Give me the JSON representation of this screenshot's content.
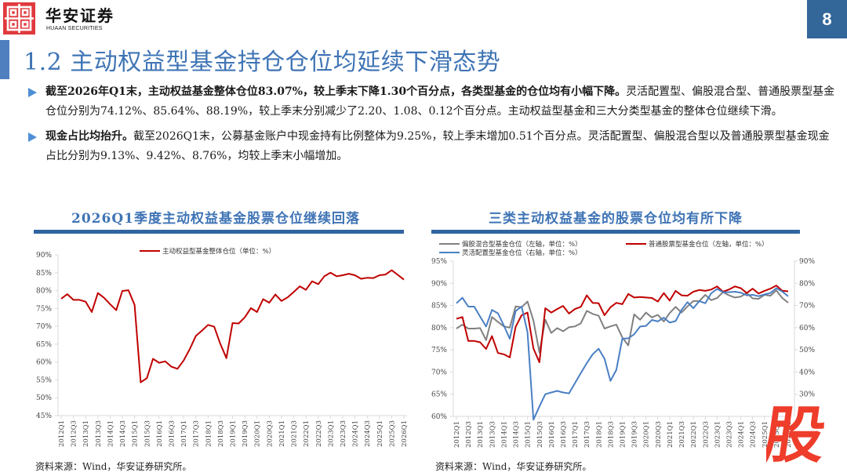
{
  "header": {
    "brand_cn": "华安证券",
    "brand_en": "HUAAN SECURITIES",
    "page_number": "8",
    "logo_color": "#e03a3e",
    "page_badge_color": "#336699"
  },
  "title": "1.2 主动权益型基金持仓仓位均延续下滑态势",
  "bullets": [
    {
      "bold": "截至2026年Q1末，主动权益基金整体仓位83.07%，较上季末下降1.30个百分点，各类型基金的仓位均有小幅下降。",
      "text": "灵活配置型、偏股混合型、普通股票型基金仓位分别为74.12%、85.64%、88.19%，较上季末分别减少了2.20、1.08、0.12个百分点。主动权益型基金和三大分类型基金的整体仓位继续下滑。"
    },
    {
      "bold": "现金占比均抬升。",
      "text": "截至2026Q1末，公募基金账户中现金持有比例整体为9.25%，较上季末增加0.51个百分点。灵活配置型、偏股混合型以及普通股票型基金现金占比分别为9.13%、9.42%、8.76%，均较上季末小幅增加。"
    }
  ],
  "left_panel": {
    "title": "2026Q1季度主动权益基金股票仓位继续回落",
    "source": "资料来源：Wind，华安证券研究所。"
  },
  "right_panel": {
    "title": "三类主动权益基金的股票仓位均有所下降",
    "source": "资料来源：Wind，华安证券研究所。"
  },
  "stamp_char": "股",
  "chart_data": [
    {
      "type": "line",
      "title": "2026Q1季度主动权益基金股票仓位继续回落",
      "xlabel": "",
      "ylabel": "",
      "ylim": [
        45,
        90
      ],
      "yticks": [
        "45%",
        "50%",
        "55%",
        "60%",
        "65%",
        "70%",
        "75%",
        "80%",
        "85%",
        "90%"
      ],
      "xtick_labels": [
        "2012Q1",
        "2012Q3",
        "2013Q1",
        "2013Q3",
        "2014Q1",
        "2014Q3",
        "2015Q1",
        "2015Q3",
        "2016Q1",
        "2016Q3",
        "2017Q1",
        "2017Q3",
        "2018Q1",
        "2018Q3",
        "2019Q1",
        "2019Q3",
        "2020Q1",
        "2020Q3",
        "2021Q1",
        "2021Q3",
        "2022Q1",
        "2022Q3",
        "2023Q1",
        "2023Q3",
        "2024Q1",
        "2024Q3",
        "2025Q1",
        "2025Q3",
        "2026Q1"
      ],
      "legend_position": "top",
      "grid": false,
      "series": [
        {
          "name": "主动权益型基金整体仓位（单位：%）",
          "color": "#c00000",
          "values": [
            77.7,
            79.0,
            77.4,
            77.4,
            76.9,
            74.0,
            79.3,
            78.0,
            76.2,
            74.5,
            79.9,
            80.1,
            76.0,
            54.3,
            55.5,
            60.9,
            59.8,
            60.2,
            58.7,
            58.1,
            60.4,
            63.6,
            67.3,
            68.8,
            70.4,
            69.9,
            65.1,
            61.1,
            70.9,
            70.8,
            72.5,
            75.1,
            74.0,
            77.6,
            76.6,
            78.9,
            77.1,
            78.1,
            79.6,
            81.2,
            80.2,
            82.6,
            81.8,
            84.0,
            85.0,
            84.0,
            84.3,
            84.7,
            84.3,
            83.3,
            83.6,
            83.5,
            84.3,
            84.5,
            85.7,
            84.4,
            83.07
          ]
        }
      ]
    },
    {
      "type": "line",
      "title": "三类主动权益基金的股票仓位均有所下降",
      "xlabel": "",
      "ylabel": "",
      "ylim": [
        60,
        95
      ],
      "y2lim": [
        20,
        90
      ],
      "yticks": [
        "60%",
        "65%",
        "70%",
        "75%",
        "80%",
        "85%",
        "90%",
        "95%"
      ],
      "y2ticks": [
        "30%",
        "40%",
        "50%",
        "60%",
        "70%",
        "80%",
        "90%"
      ],
      "xtick_labels": [
        "2012Q1",
        "2012Q3",
        "2013Q1",
        "2013Q3",
        "2014Q1",
        "2014Q3",
        "2015Q1",
        "2015Q3",
        "2016Q1",
        "2016Q3",
        "2017Q1",
        "2017Q3",
        "2018Q1",
        "2018Q3",
        "2019Q1",
        "2019Q3",
        "2020Q1",
        "2020Q3",
        "2021Q1",
        "2021Q3",
        "2022Q1",
        "2022Q3",
        "2023Q1",
        "2023Q3",
        "2024Q1",
        "2024Q3",
        "2025Q1",
        "2025Q3",
        "2026Q1"
      ],
      "legend_position": "top",
      "grid": false,
      "series": [
        {
          "name": "偏股混合型基金仓位（左轴，单位：%）",
          "axis": "left",
          "color": "#808080",
          "values": [
            79.8,
            80.7,
            79.8,
            79.8,
            79.9,
            77.2,
            82.4,
            81.3,
            80.3,
            80.0,
            84.8,
            84.6,
            85.9,
            81.6,
            74.4,
            81.8,
            78.8,
            79.9,
            79.2,
            80.1,
            80.3,
            81.0,
            83.8,
            83.1,
            82.7,
            79.8,
            80.3,
            80.7,
            77.8,
            76.0,
            83.0,
            81.8,
            83.4,
            82.3,
            82.9,
            81.4,
            83.3,
            84.7,
            83.4,
            84.8,
            86.0,
            86.0,
            87.4,
            86.2,
            86.7,
            88.0,
            87.3,
            86.8,
            87.0,
            87.8,
            86.6,
            86.5,
            87.4,
            87.2,
            88.4,
            86.7,
            85.64
          ]
        },
        {
          "name": "普通股票型基金仓位（左轴，单位：%）",
          "axis": "left",
          "color": "#c00000",
          "values": [
            82.0,
            82.4,
            77.0,
            77.0,
            76.7,
            75.2,
            78.1,
            74.3,
            74.0,
            73.3,
            80.2,
            82.8,
            83.4,
            75.3,
            72.2,
            84.4,
            83.4,
            84.2,
            84.9,
            83.2,
            84.2,
            84.7,
            87.3,
            85.6,
            85.5,
            82.8,
            84.6,
            85.6,
            85.3,
            87.6,
            86.8,
            86.9,
            86.8,
            86.7,
            85.9,
            87.8,
            86.1,
            88.3,
            87.3,
            87.2,
            88.1,
            88.5,
            88.3,
            88.6,
            89.3,
            88.1,
            88.6,
            89.3,
            88.9,
            87.8,
            88.8,
            87.7,
            88.3,
            88.8,
            89.5,
            88.31,
            88.19
          ]
        },
        {
          "name": "灵活配置型基金仓位（右轴，单位：%）",
          "axis": "right",
          "color": "#4a7fc4",
          "values": [
            71.0,
            73.5,
            69.5,
            69.5,
            65.0,
            60.5,
            68.0,
            66.5,
            61.0,
            55.0,
            67.5,
            69.5,
            58.0,
            18.5,
            24.5,
            30.0,
            30.8,
            31.5,
            30.8,
            30.4,
            35.0,
            39.5,
            44.0,
            48.0,
            50.5,
            46.0,
            36.0,
            41.0,
            55.0,
            55.2,
            57.0,
            60.5,
            60.8,
            63.5,
            62.8,
            64.5,
            62.3,
            63.0,
            68.0,
            71.5,
            68.8,
            72.0,
            71.0,
            75.5,
            77.5,
            76.0,
            76.0,
            76.2,
            75.8,
            74.6,
            74.8,
            74.2,
            75.0,
            75.6,
            77.8,
            76.32,
            74.12
          ]
        }
      ]
    }
  ]
}
